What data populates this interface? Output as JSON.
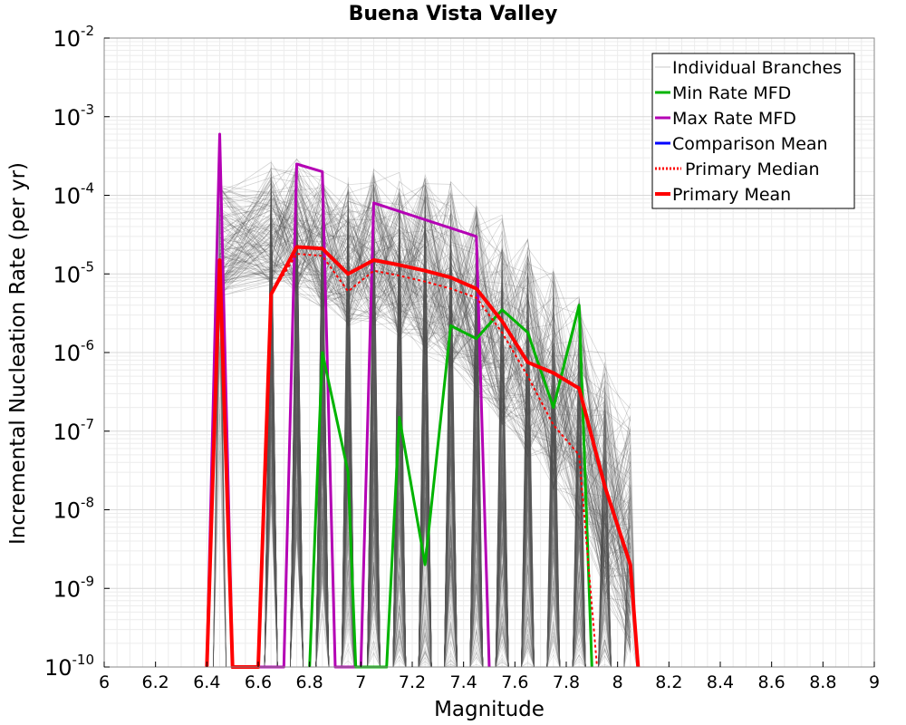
{
  "chart_data": {
    "type": "line",
    "title": "Buena Vista Valley",
    "xlabel": "Magnitude",
    "ylabel": "Incremental Nucleation Rate (per yr)",
    "y_scale": "log",
    "xlim": [
      6,
      9
    ],
    "ylim": [
      1e-10,
      0.01
    ],
    "x_ticks": [
      "6",
      "6.2",
      "6.4",
      "6.6",
      "6.8",
      "7",
      "7.2",
      "7.4",
      "7.6",
      "7.8",
      "8",
      "8.2",
      "8.4",
      "8.6",
      "8.8",
      "9"
    ],
    "x_tick_values": [
      6,
      6.2,
      6.4,
      6.6,
      6.8,
      7,
      7.2,
      7.4,
      7.6,
      7.8,
      8,
      8.2,
      8.4,
      8.6,
      8.8,
      9
    ],
    "y_ticks": [
      {
        "base": "10",
        "exp": "-2",
        "value": -2
      },
      {
        "base": "10",
        "exp": "-3",
        "value": -3
      },
      {
        "base": "10",
        "exp": "-4",
        "value": -4
      },
      {
        "base": "10",
        "exp": "-5",
        "value": -5
      },
      {
        "base": "10",
        "exp": "-6",
        "value": -6
      },
      {
        "base": "10",
        "exp": "-7",
        "value": -7
      },
      {
        "base": "10",
        "exp": "-8",
        "value": -8
      },
      {
        "base": "10",
        "exp": "-9",
        "value": -9
      },
      {
        "base": "10",
        "exp": "-10",
        "value": -10
      }
    ],
    "legend_position": "top-right",
    "legend": [
      {
        "label": "Individual Branches",
        "color": "#c8c8c8",
        "style": "solid-thin"
      },
      {
        "label": "Min Rate MFD",
        "color": "#00b400",
        "style": "solid"
      },
      {
        "label": "Max Rate MFD",
        "color": "#b400b4",
        "style": "solid"
      },
      {
        "label": "Comparison Mean",
        "color": "#0000ff",
        "style": "solid"
      },
      {
        "label": "Primary Median",
        "color": "#ff0000",
        "style": "dotted"
      },
      {
        "label": "Primary Mean",
        "color": "#ff0000",
        "style": "solid-thick"
      }
    ],
    "branch_envelope": {
      "name": "Individual Branches",
      "color": "#505050",
      "x": [
        6.45,
        6.65,
        6.75,
        6.85,
        6.95,
        7.05,
        7.15,
        7.25,
        7.35,
        7.45,
        7.55,
        7.65,
        7.75,
        7.85,
        7.95,
        8.05
      ],
      "upper": [
        0.00015,
        0.0003,
        0.0003,
        0.00025,
        0.0002,
        0.00025,
        0.0002,
        0.0002,
        0.00015,
        0.0001,
        6e-05,
        3e-05,
        1.5e-05,
        6e-06,
        1e-06,
        3e-07
      ]
    },
    "series": [
      {
        "name": "Max Rate MFD",
        "color": "#b400b4",
        "width": 3,
        "dash": "",
        "points": [
          [
            6.4,
            1e-10
          ],
          [
            6.45,
            0.0006
          ],
          [
            6.5,
            1e-10
          ],
          [
            6.7,
            1e-10
          ],
          [
            6.75,
            0.00025
          ],
          [
            6.85,
            0.0002
          ],
          [
            6.9,
            1e-10
          ],
          [
            7.0,
            1e-10
          ],
          [
            7.05,
            8e-05
          ],
          [
            7.45,
            3e-05
          ],
          [
            7.5,
            1e-10
          ]
        ]
      },
      {
        "name": "Min Rate MFD",
        "color": "#00b400",
        "width": 3,
        "dash": "",
        "points": [
          [
            6.8,
            1e-10
          ],
          [
            6.85,
            1e-06
          ],
          [
            6.95,
            3e-08
          ],
          [
            6.98,
            1e-10
          ],
          [
            7.1,
            1e-10
          ],
          [
            7.15,
            1.5e-07
          ],
          [
            7.25,
            2e-09
          ],
          [
            7.35,
            2.2e-06
          ],
          [
            7.45,
            1.5e-06
          ],
          [
            7.55,
            3.5e-06
          ],
          [
            7.65,
            1.8e-06
          ],
          [
            7.75,
            2e-07
          ],
          [
            7.85,
            4e-06
          ],
          [
            7.9,
            1e-10
          ]
        ]
      },
      {
        "name": "Primary Median",
        "color": "#ff0000",
        "width": 2,
        "dash": "3,3",
        "points": [
          [
            6.4,
            1e-10
          ],
          [
            6.45,
            1.5e-05
          ],
          [
            6.5,
            1e-10
          ],
          [
            6.6,
            1e-10
          ],
          [
            6.65,
            5.5e-06
          ],
          [
            6.75,
            1.8e-05
          ],
          [
            6.85,
            1.7e-05
          ],
          [
            6.95,
            6e-06
          ],
          [
            7.05,
            1.1e-05
          ],
          [
            7.15,
            9.5e-06
          ],
          [
            7.25,
            8e-06
          ],
          [
            7.35,
            6.5e-06
          ],
          [
            7.45,
            5e-06
          ],
          [
            7.55,
            1.8e-06
          ],
          [
            7.65,
            5e-07
          ],
          [
            7.75,
            1.2e-07
          ],
          [
            7.85,
            5e-08
          ],
          [
            7.92,
            1e-10
          ]
        ]
      },
      {
        "name": "Primary Mean",
        "color": "#ff0000",
        "width": 4,
        "dash": "",
        "points": [
          [
            6.4,
            1e-10
          ],
          [
            6.45,
            1.5e-05
          ],
          [
            6.5,
            1e-10
          ],
          [
            6.6,
            1e-10
          ],
          [
            6.65,
            5.5e-06
          ],
          [
            6.75,
            2.2e-05
          ],
          [
            6.85,
            2.1e-05
          ],
          [
            6.95,
            1e-05
          ],
          [
            7.05,
            1.5e-05
          ],
          [
            7.15,
            1.3e-05
          ],
          [
            7.25,
            1.1e-05
          ],
          [
            7.35,
            9e-06
          ],
          [
            7.45,
            6.5e-06
          ],
          [
            7.55,
            2.5e-06
          ],
          [
            7.65,
            7.5e-07
          ],
          [
            7.75,
            5.5e-07
          ],
          [
            7.85,
            3.5e-07
          ],
          [
            7.95,
            2e-08
          ],
          [
            8.05,
            2e-09
          ],
          [
            8.08,
            1e-10
          ]
        ]
      }
    ]
  }
}
